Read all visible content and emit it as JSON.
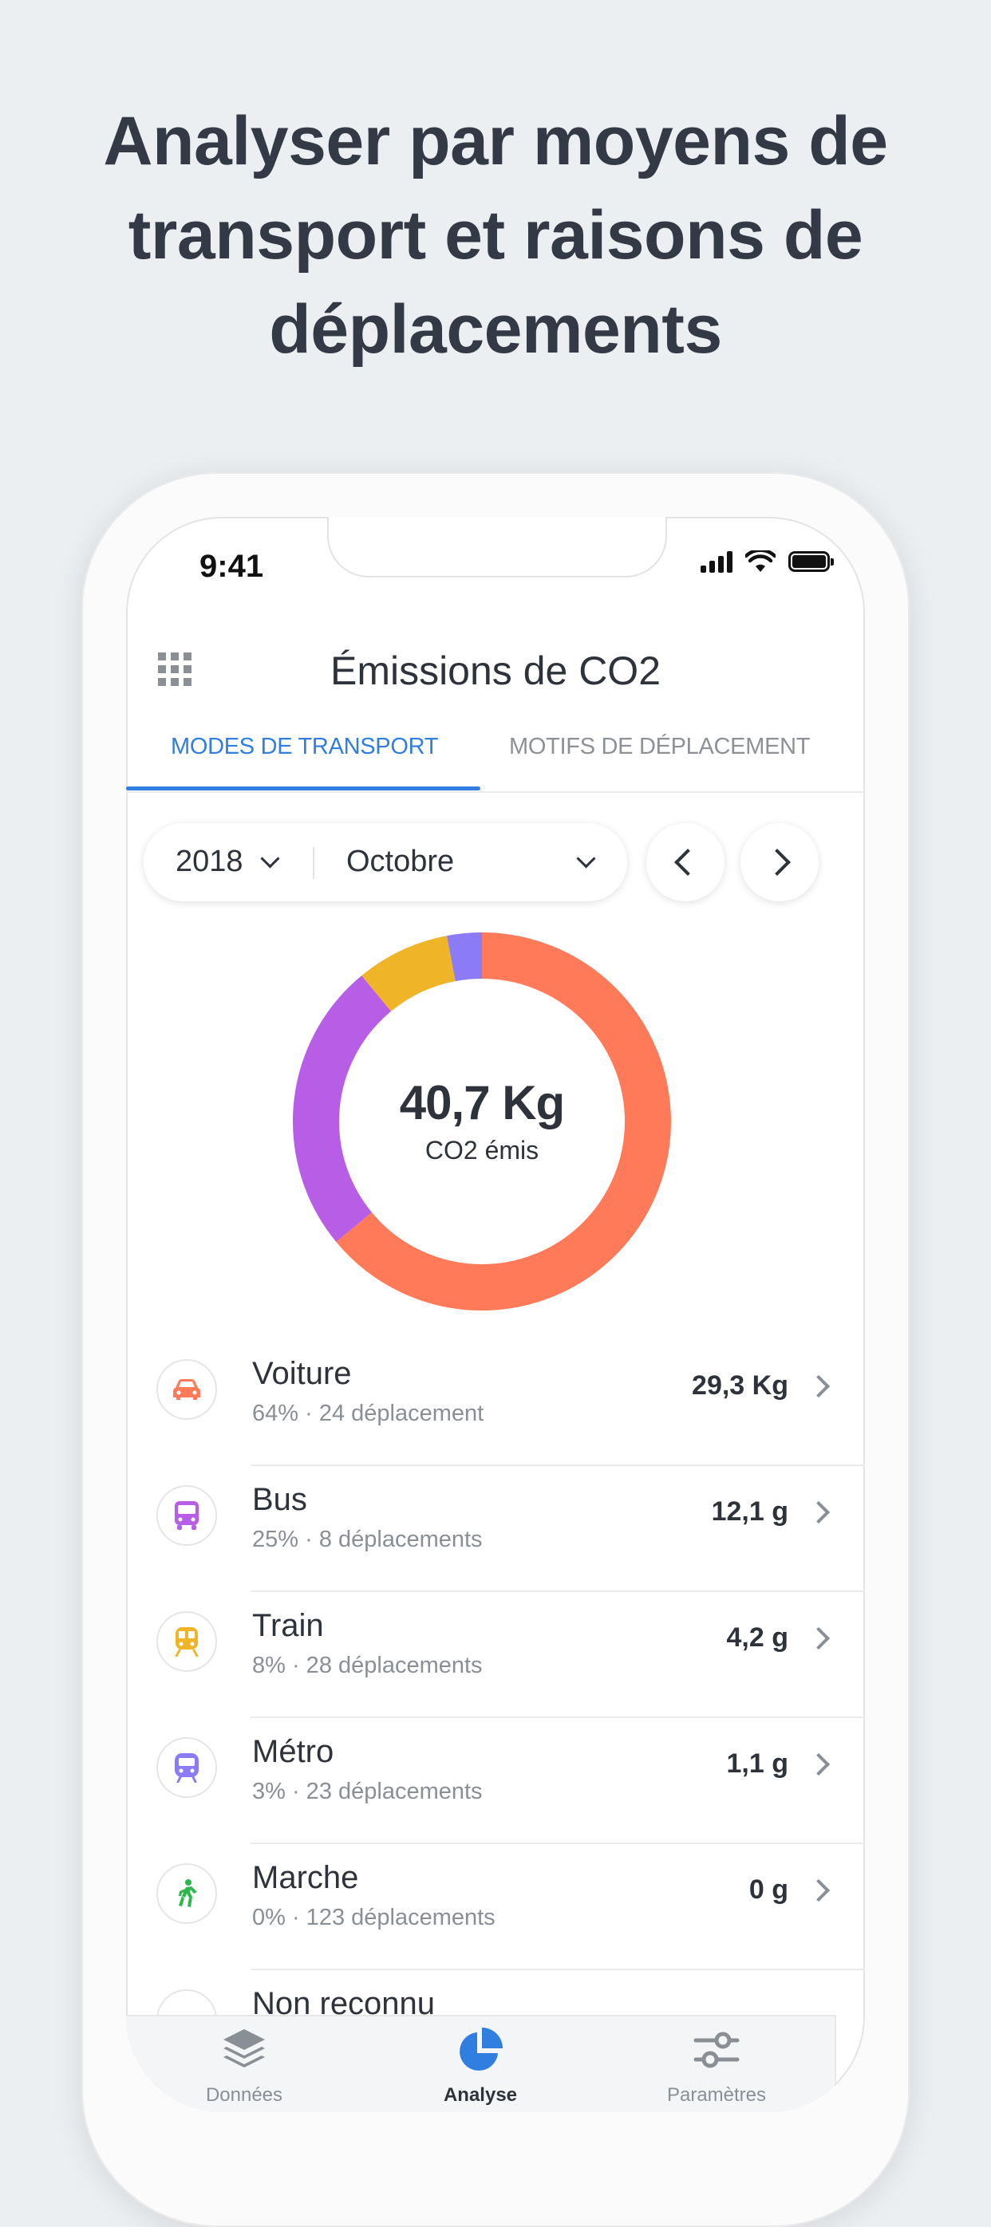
{
  "headline": "Analyser par moyens de transport et raisons de déplacements",
  "status_bar": {
    "time": "9:41"
  },
  "header": {
    "title": "Émissions de CO2",
    "menu_icon": "grid-icon"
  },
  "tabs": [
    {
      "label": "MODES DE TRANSPORT",
      "active": true
    },
    {
      "label": "MOTIFS DE DÉPLACEMENT",
      "active": false
    }
  ],
  "filters": {
    "year": "2018",
    "month": "Octobre"
  },
  "summary": {
    "total": "40,7 Kg",
    "subtitle": "CO2 émis"
  },
  "donut": {
    "segments": [
      {
        "label": "Voiture",
        "percent": 64,
        "color": "#ff7a59"
      },
      {
        "label": "Bus",
        "percent": 25,
        "color": "#b85de6"
      },
      {
        "label": "Train",
        "percent": 8,
        "color": "#f0b429"
      },
      {
        "label": "Métro",
        "percent": 3,
        "color": "#8b7cf6"
      }
    ]
  },
  "modes": [
    {
      "name": "Voiture",
      "detail": "64% · 24 déplacement",
      "value": "29,3 Kg",
      "icon": "car-icon",
      "color": "#ff7a59"
    },
    {
      "name": "Bus",
      "detail": "25% · 8 déplacements",
      "value": "12,1 g",
      "icon": "bus-icon",
      "color": "#b85de6"
    },
    {
      "name": "Train",
      "detail": "8% · 28 déplacements",
      "value": "4,2 g",
      "icon": "train-icon",
      "color": "#f0b429"
    },
    {
      "name": "Métro",
      "detail": "3% · 23 déplacements",
      "value": "1,1 g",
      "icon": "metro-icon",
      "color": "#8b7cf6"
    },
    {
      "name": "Marche",
      "detail": "0% · 123 déplacements",
      "value": "0 g",
      "icon": "walk-icon",
      "color": "#2db84d"
    },
    {
      "name": "Non reconnu",
      "icon": "unknown-icon",
      "color": "#8a8f96"
    }
  ],
  "bottom_nav": [
    {
      "label": "Données",
      "icon": "layers-icon",
      "active": false
    },
    {
      "label": "Analyse",
      "icon": "pie-chart-icon",
      "active": true
    },
    {
      "label": "Paramètres",
      "icon": "sliders-icon",
      "active": false
    }
  ]
}
